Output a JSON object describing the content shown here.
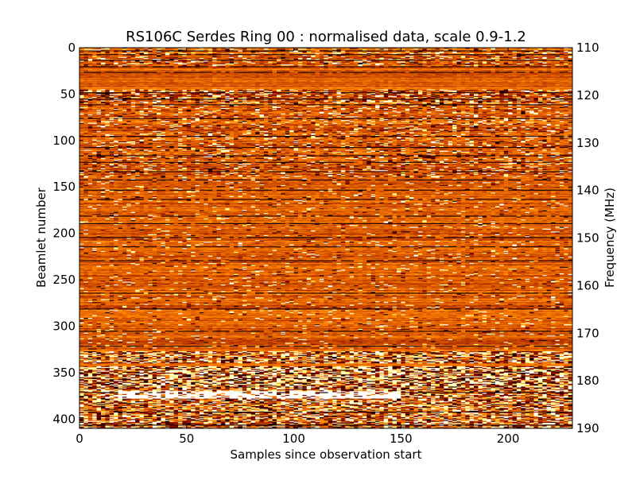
{
  "chart_data": {
    "type": "heatmap",
    "title": "RS106C Serdes Ring 00 : normalised data, scale 0.9-1.2",
    "xlabel": "Samples since observation start",
    "ylabel": "Beamlet number",
    "y2label": "Frequency (MHz)",
    "xlim": [
      0,
      230
    ],
    "ylim": [
      0,
      410
    ],
    "y2lim": [
      110,
      190
    ],
    "y_inverted": true,
    "color_scale": [
      0.9,
      1.2
    ],
    "colormap": "afmhot",
    "x_ticks": [
      0,
      50,
      100,
      150,
      200
    ],
    "x_tick_labels": [
      "0",
      "50",
      "100",
      "150",
      "200"
    ],
    "y_ticks": [
      0,
      50,
      100,
      150,
      200,
      250,
      300,
      350,
      400
    ],
    "y_tick_labels": [
      "0",
      "50",
      "100",
      "150",
      "200",
      "250",
      "300",
      "350",
      "400"
    ],
    "y2_ticks": [
      110,
      120,
      130,
      140,
      150,
      160,
      170,
      180,
      190
    ],
    "y2_tick_labels": [
      "110",
      "120",
      "130",
      "140",
      "150",
      "160",
      "170",
      "180",
      "190"
    ],
    "background_value": 1.03,
    "dark_rows": [
      3,
      7,
      13,
      20,
      26,
      48,
      55,
      61,
      76,
      95,
      107,
      116,
      123,
      133,
      142,
      153,
      163,
      181,
      189,
      204,
      214,
      229,
      264,
      281,
      305,
      321,
      371,
      392,
      406
    ],
    "noisy_bands": [
      {
        "from": 0,
        "to": 20,
        "intensity": 0.35
      },
      {
        "from": 45,
        "to": 60,
        "intensity": 0.5
      },
      {
        "from": 60,
        "to": 140,
        "intensity": 0.3
      },
      {
        "from": 140,
        "to": 325,
        "intensity": 0.12
      },
      {
        "from": 327,
        "to": 340,
        "intensity": 0.8
      },
      {
        "from": 343,
        "to": 367,
        "intensity": 1.0
      },
      {
        "from": 367,
        "to": 410,
        "intensity": 0.7
      }
    ],
    "bright_streak": {
      "row_from": 370,
      "row_to": 378,
      "x_from": 18,
      "x_to": 150,
      "value": 1.2
    }
  }
}
